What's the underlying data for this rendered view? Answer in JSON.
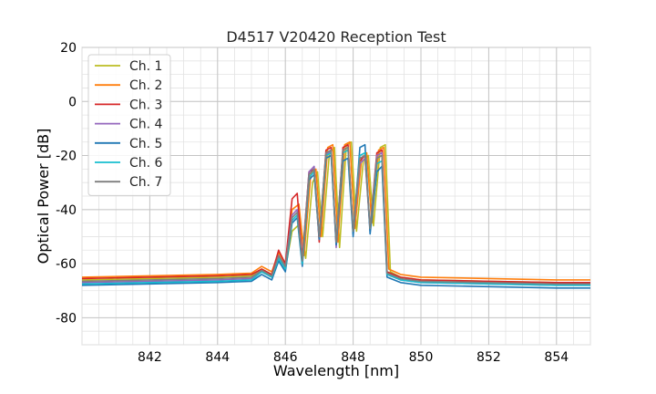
{
  "chart_data": {
    "type": "line",
    "title": "D4517 V20420 Reception Test",
    "xlabel": "Wavelength [nm]",
    "ylabel": "Optical Power [dB]",
    "xlim": [
      840.0,
      855.0
    ],
    "ylim": [
      -90,
      20
    ],
    "xticks": [
      842,
      844,
      846,
      848,
      850,
      852,
      854
    ],
    "yticks": [
      20,
      0,
      -20,
      -40,
      -60,
      -80
    ],
    "x_minor_step": 0.5,
    "y_minor_step": 5,
    "grid": true,
    "legend_position": "top-left",
    "series": [
      {
        "name": "Ch. 1",
        "color": "#bcbd22",
        "x": [
          840.0,
          842.0,
          844.0,
          845.0,
          845.3,
          845.6,
          845.8,
          846.0,
          846.2,
          846.45,
          846.6,
          846.8,
          846.95,
          847.1,
          847.3,
          847.45,
          847.6,
          847.8,
          847.95,
          848.1,
          848.3,
          848.45,
          848.6,
          848.8,
          848.95,
          849.1,
          849.4,
          850.0,
          852.0,
          854.0,
          855.0
        ],
        "y": [
          -66,
          -65.5,
          -65,
          -64.5,
          -62,
          -64,
          -58,
          -62,
          -48,
          -45,
          -58,
          -30,
          -26,
          -50,
          -19,
          -17,
          -54,
          -16,
          -15,
          -48,
          -22,
          -20,
          -46,
          -17,
          -16,
          -63,
          -65,
          -66,
          -66.5,
          -67,
          -67
        ]
      },
      {
        "name": "Ch. 2",
        "color": "#ff7f0e",
        "x": [
          840.0,
          842.0,
          844.0,
          845.0,
          845.3,
          845.6,
          845.8,
          846.0,
          846.2,
          846.4,
          846.55,
          846.75,
          846.9,
          847.05,
          847.25,
          847.4,
          847.55,
          847.75,
          847.9,
          848.05,
          848.25,
          848.4,
          848.55,
          848.75,
          848.9,
          849.05,
          849.4,
          850.0,
          852.0,
          854.0,
          855.0
        ],
        "y": [
          -65,
          -64.5,
          -64,
          -63.5,
          -61,
          -63,
          -56,
          -60,
          -40,
          -38,
          -57,
          -27,
          -25,
          -50,
          -17,
          -16,
          -52,
          -16,
          -15,
          -47,
          -21,
          -19,
          -45,
          -18,
          -17,
          -62,
          -64,
          -65,
          -65.5,
          -66,
          -66
        ]
      },
      {
        "name": "Ch. 3",
        "color": "#d62728",
        "x": [
          840.0,
          842.0,
          844.0,
          845.0,
          845.3,
          845.6,
          845.8,
          846.0,
          846.2,
          846.35,
          846.5,
          846.7,
          846.85,
          847.0,
          847.2,
          847.35,
          847.5,
          847.7,
          847.85,
          848.0,
          848.2,
          848.35,
          848.5,
          848.7,
          848.85,
          849.0,
          849.4,
          850.0,
          852.0,
          854.0,
          855.0
        ],
        "y": [
          -65.5,
          -65,
          -64.5,
          -64,
          -62,
          -64,
          -55,
          -60,
          -36,
          -34,
          -58,
          -26,
          -25,
          -52,
          -18,
          -17,
          -53,
          -17,
          -16,
          -49,
          -22,
          -20,
          -47,
          -19,
          -18,
          -63,
          -65,
          -66,
          -66.5,
          -67,
          -67
        ]
      },
      {
        "name": "Ch. 4",
        "color": "#9467bd",
        "x": [
          840.0,
          842.0,
          844.0,
          845.0,
          845.3,
          845.6,
          845.8,
          846.0,
          846.2,
          846.35,
          846.5,
          846.7,
          846.85,
          847.0,
          847.2,
          847.35,
          847.5,
          847.7,
          847.85,
          848.0,
          848.2,
          848.35,
          848.5,
          848.7,
          848.85,
          849.0,
          849.4,
          850.0,
          852.0,
          854.0,
          855.0
        ],
        "y": [
          -67,
          -66.5,
          -66,
          -65.5,
          -63,
          -65,
          -57,
          -61,
          -42,
          -40,
          -59,
          -26,
          -24,
          -51,
          -20,
          -18,
          -54,
          -18,
          -17,
          -49,
          -23,
          -21,
          -48,
          -20,
          -19,
          -64,
          -66,
          -67,
          -67.5,
          -68,
          -68
        ]
      },
      {
        "name": "Ch. 5",
        "color": "#1f77b4",
        "x": [
          840.0,
          842.0,
          844.0,
          845.0,
          845.3,
          845.6,
          845.8,
          846.0,
          846.2,
          846.35,
          846.5,
          846.7,
          846.85,
          847.0,
          847.2,
          847.35,
          847.5,
          847.7,
          847.85,
          848.0,
          848.2,
          848.35,
          848.5,
          848.7,
          848.85,
          849.0,
          849.4,
          850.0,
          852.0,
          854.0,
          855.0
        ],
        "y": [
          -68,
          -67.5,
          -67,
          -66.5,
          -64,
          -66,
          -59,
          -63,
          -45,
          -43,
          -61,
          -29,
          -27,
          -51,
          -21,
          -20,
          -53,
          -22,
          -21,
          -50,
          -17,
          -16,
          -49,
          -26,
          -24,
          -65,
          -67,
          -68,
          -68.5,
          -69,
          -69
        ]
      },
      {
        "name": "Ch. 6",
        "color": "#17becf",
        "x": [
          840.0,
          842.0,
          844.0,
          845.0,
          845.3,
          845.6,
          845.8,
          846.0,
          846.2,
          846.35,
          846.5,
          846.7,
          846.85,
          847.0,
          847.2,
          847.35,
          847.5,
          847.7,
          847.85,
          848.0,
          848.2,
          848.35,
          848.5,
          848.7,
          848.85,
          849.0,
          849.4,
          850.0,
          852.0,
          854.0,
          855.0
        ],
        "y": [
          -67.5,
          -67,
          -66.5,
          -66,
          -63,
          -65,
          -58,
          -62,
          -44,
          -42,
          -60,
          -28,
          -26,
          -50,
          -20,
          -19,
          -52,
          -19,
          -18,
          -48,
          -20,
          -19,
          -47,
          -23,
          -22,
          -64,
          -66,
          -67,
          -67.5,
          -68,
          -68
        ]
      },
      {
        "name": "Ch. 7",
        "color": "#7f7f7f",
        "x": [
          840.0,
          842.0,
          844.0,
          845.0,
          845.3,
          845.6,
          845.8,
          846.0,
          846.2,
          846.35,
          846.5,
          846.7,
          846.85,
          847.0,
          847.2,
          847.35,
          847.5,
          847.7,
          847.85,
          848.0,
          848.2,
          848.35,
          848.5,
          848.7,
          848.85,
          849.0,
          849.4,
          850.0,
          852.0,
          854.0,
          855.0
        ],
        "y": [
          -66.5,
          -66,
          -65.5,
          -65,
          -62.5,
          -64.5,
          -57,
          -61,
          -43,
          -41,
          -59,
          -27,
          -25,
          -50,
          -19,
          -18,
          -52,
          -18,
          -17,
          -48,
          -21,
          -20,
          -47,
          -21,
          -20,
          -63.5,
          -65.5,
          -66.5,
          -67,
          -67.5,
          -67.5
        ]
      }
    ]
  }
}
